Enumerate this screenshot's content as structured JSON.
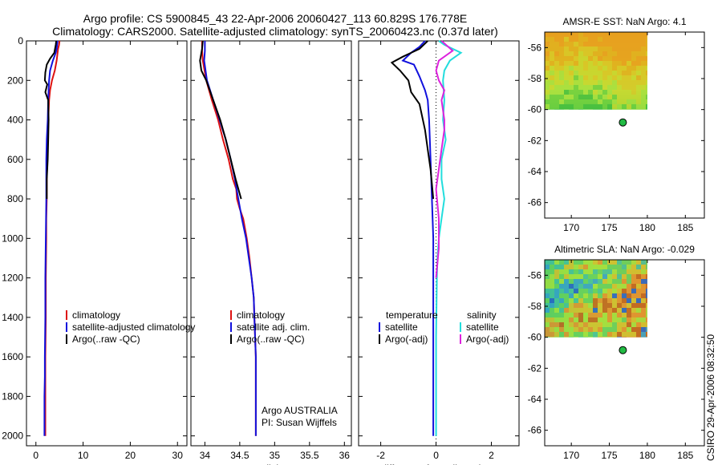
{
  "header": {
    "line1": "Argo profile: CS 5900845_43 22-Apr-2006 20060427_113 60.829S 176.778E",
    "line2": "Climatology: CARS2000. Satellite-adjusted climatology: synTS_20060423.nc (0.37d later)"
  },
  "stamp": "CSIRO 29-Apr-2006 08:32:50",
  "colors": {
    "climatology": "#dd1111",
    "satellite": "#1111dd",
    "argo": "#000000",
    "satellite_salinity": "#22dddd",
    "argo_adj_salinity": "#dd22dd"
  },
  "chart_data": [
    {
      "type": "line",
      "id": "temperature",
      "xlabel": "temperature",
      "xlim": [
        -2,
        32
      ],
      "ylim": [
        2050,
        0
      ],
      "xticks": [
        0,
        10,
        20,
        30
      ],
      "yticks": [
        0,
        200,
        400,
        600,
        800,
        1000,
        1200,
        1400,
        1600,
        1800,
        2000
      ],
      "legend": [
        "climatology",
        "satellite-adjusted climatology",
        "Argo(..raw -QC)"
      ],
      "series": [
        {
          "name": "climatology",
          "color": "#dd1111",
          "x": [
            5.0,
            4.9,
            4.7,
            4.6,
            4.4,
            4.0,
            3.4,
            3.0,
            2.8,
            2.6,
            2.5,
            2.4,
            2.3,
            2.3,
            2.2,
            2.2,
            2.1,
            2.1,
            2.0,
            2.0,
            2.0,
            2.0
          ],
          "y": [
            0,
            20,
            40,
            60,
            100,
            150,
            200,
            250,
            300,
            400,
            500,
            600,
            700,
            800,
            900,
            1000,
            1200,
            1400,
            1600,
            1800,
            1900,
            2000
          ]
        },
        {
          "name": "satellite-adjusted climatology",
          "color": "#1111dd",
          "x": [
            4.6,
            4.5,
            4.4,
            4.2,
            3.6,
            3.0,
            2.8,
            2.7,
            2.6,
            2.5,
            2.3,
            2.2,
            2.2,
            2.1,
            2.0,
            2.0,
            1.9,
            1.9,
            1.8,
            1.8,
            1.8
          ],
          "y": [
            0,
            20,
            40,
            60,
            100,
            150,
            200,
            250,
            300,
            400,
            500,
            600,
            800,
            1000,
            1200,
            1400,
            1600,
            1700,
            1800,
            1900,
            2000
          ]
        },
        {
          "name": "Argo(..raw -QC)",
          "color": "#000000",
          "x": [
            4.3,
            4.2,
            3.9,
            3.0,
            2.3,
            2.0,
            1.9,
            2.4,
            2.0,
            2.6,
            2.7,
            2.6,
            2.5,
            2.3,
            2.3
          ],
          "y": [
            0,
            20,
            60,
            90,
            120,
            160,
            200,
            220,
            260,
            300,
            400,
            500,
            600,
            700,
            800
          ]
        }
      ]
    },
    {
      "type": "line",
      "id": "salinity",
      "xlabel": "salinity",
      "xlim": [
        33.8,
        36.1
      ],
      "ylim": [
        2050,
        0
      ],
      "xticks": [
        34,
        34.5,
        35,
        35.5,
        36
      ],
      "legend": [
        "climatology",
        "satellite adj. clim.",
        "Argo(..raw -QC)"
      ],
      "annotations": [
        "Argo AUSTRALIA",
        "PI: Susan Wijffels"
      ],
      "series": [
        {
          "name": "climatology",
          "color": "#dd1111",
          "x": [
            33.96,
            33.96,
            33.97,
            34.02,
            34.1,
            34.19,
            34.26,
            34.34,
            34.4,
            34.45,
            34.46,
            34.5,
            34.55,
            34.6,
            34.64,
            34.67,
            34.7,
            34.71,
            34.72,
            34.73,
            34.73,
            34.73
          ],
          "y": [
            0,
            50,
            100,
            200,
            300,
            400,
            500,
            600,
            700,
            750,
            800,
            850,
            900,
            1000,
            1100,
            1200,
            1300,
            1400,
            1500,
            1600,
            1800,
            2000
          ]
        },
        {
          "name": "satellite adj. clim.",
          "color": "#1111dd",
          "x": [
            34.0,
            34.0,
            33.99,
            34.03,
            34.12,
            34.21,
            34.3,
            34.37,
            34.43,
            34.48,
            34.53,
            34.59,
            34.63,
            34.67,
            34.7,
            34.71,
            34.72,
            34.73,
            34.73,
            34.73
          ],
          "y": [
            0,
            50,
            100,
            200,
            300,
            400,
            500,
            600,
            700,
            800,
            900,
            1000,
            1100,
            1200,
            1300,
            1400,
            1500,
            1600,
            1800,
            2000
          ]
        },
        {
          "name": "Argo(..raw -QC)",
          "color": "#000000",
          "x": [
            33.97,
            33.96,
            33.93,
            33.95,
            34.02,
            34.12,
            34.22,
            34.3,
            34.37,
            34.44,
            34.52
          ],
          "y": [
            0,
            40,
            100,
            150,
            200,
            300,
            400,
            500,
            600,
            700,
            800
          ]
        }
      ]
    },
    {
      "type": "line",
      "id": "difference",
      "xlabel": "difference from climatology",
      "xlim": [
        -2.8,
        3.0
      ],
      "ylim": [
        2050,
        0
      ],
      "xticks": [
        -2,
        0,
        2
      ],
      "legend_left": [
        "temperature",
        "satellite",
        "Argo(-adj)"
      ],
      "legend_right": [
        "salinity",
        "satellite",
        "Argo(-adj)"
      ],
      "series": [
        {
          "name": "temperature satellite",
          "color": "#1111dd",
          "x": [
            -0.4,
            -0.6,
            -0.9,
            -1.2,
            -0.8,
            -0.6,
            -0.4,
            -0.3,
            -0.25,
            -0.2,
            -0.15,
            -0.1,
            -0.1,
            -0.1,
            -0.1,
            -0.1
          ],
          "y": [
            0,
            30,
            60,
            100,
            120,
            180,
            250,
            300,
            400,
            600,
            800,
            1000,
            1200,
            1500,
            1800,
            2000
          ]
        },
        {
          "name": "temperature Argo(-adj)",
          "color": "#000000",
          "x": [
            -0.3,
            -0.6,
            -1.2,
            -1.6,
            -1.3,
            -1.0,
            -0.9,
            -0.6,
            -0.4,
            -0.3,
            -0.2,
            -0.1
          ],
          "y": [
            0,
            40,
            80,
            110,
            150,
            200,
            260,
            320,
            450,
            550,
            650,
            800
          ]
        },
        {
          "name": "salinity satellite",
          "color": "#22dddd",
          "x": [
            0.1,
            0.3,
            0.9,
            0.5,
            0.3,
            0.25,
            0.3,
            0.25,
            0.35,
            0.2,
            0.2,
            0.3,
            0.2,
            0.1,
            0.05,
            0.03,
            0.0,
            0.0
          ],
          "y": [
            0,
            20,
            60,
            100,
            150,
            200,
            300,
            400,
            500,
            600,
            700,
            800,
            900,
            1000,
            1100,
            1200,
            1500,
            2000
          ]
        },
        {
          "name": "salinity Argo(-adj)",
          "color": "#dd22dd",
          "x": [
            0.2,
            0.6,
            0.1,
            0.0,
            0.1,
            0.3,
            0.2,
            0.3,
            0.3,
            0.2,
            0.1,
            0.0,
            0.1,
            0.1,
            0.0
          ],
          "y": [
            0,
            50,
            100,
            150,
            200,
            250,
            300,
            400,
            450,
            550,
            650,
            750,
            900,
            1050,
            1200
          ]
        }
      ]
    },
    {
      "type": "heatmap",
      "id": "sst",
      "title": "AMSR-E SST: NaN Argo: 4.1",
      "xlim": [
        166.5,
        187.5
      ],
      "ylim": [
        -67,
        -55
      ],
      "xticks": [
        170,
        175,
        180,
        185
      ],
      "yticks": [
        -56,
        -58,
        -60,
        -62,
        -64,
        -66
      ],
      "field_extent": {
        "lon": [
          166.5,
          180
        ],
        "lat": [
          -60,
          -55
        ]
      },
      "argo_position": {
        "lon": 176.778,
        "lat": -60.829
      }
    },
    {
      "type": "heatmap",
      "id": "sla",
      "title": "Altimetric SLA: NaN Argo: -0.029",
      "xlim": [
        166.5,
        187.5
      ],
      "ylim": [
        -67,
        -55
      ],
      "xticks": [
        170,
        175,
        180,
        185
      ],
      "yticks": [
        -56,
        -58,
        -60,
        -62,
        -64,
        -66
      ],
      "field_extent": {
        "lon": [
          166.5,
          180
        ],
        "lat": [
          -60,
          -55
        ]
      },
      "argo_position": {
        "lon": 176.778,
        "lat": -60.829
      }
    }
  ]
}
